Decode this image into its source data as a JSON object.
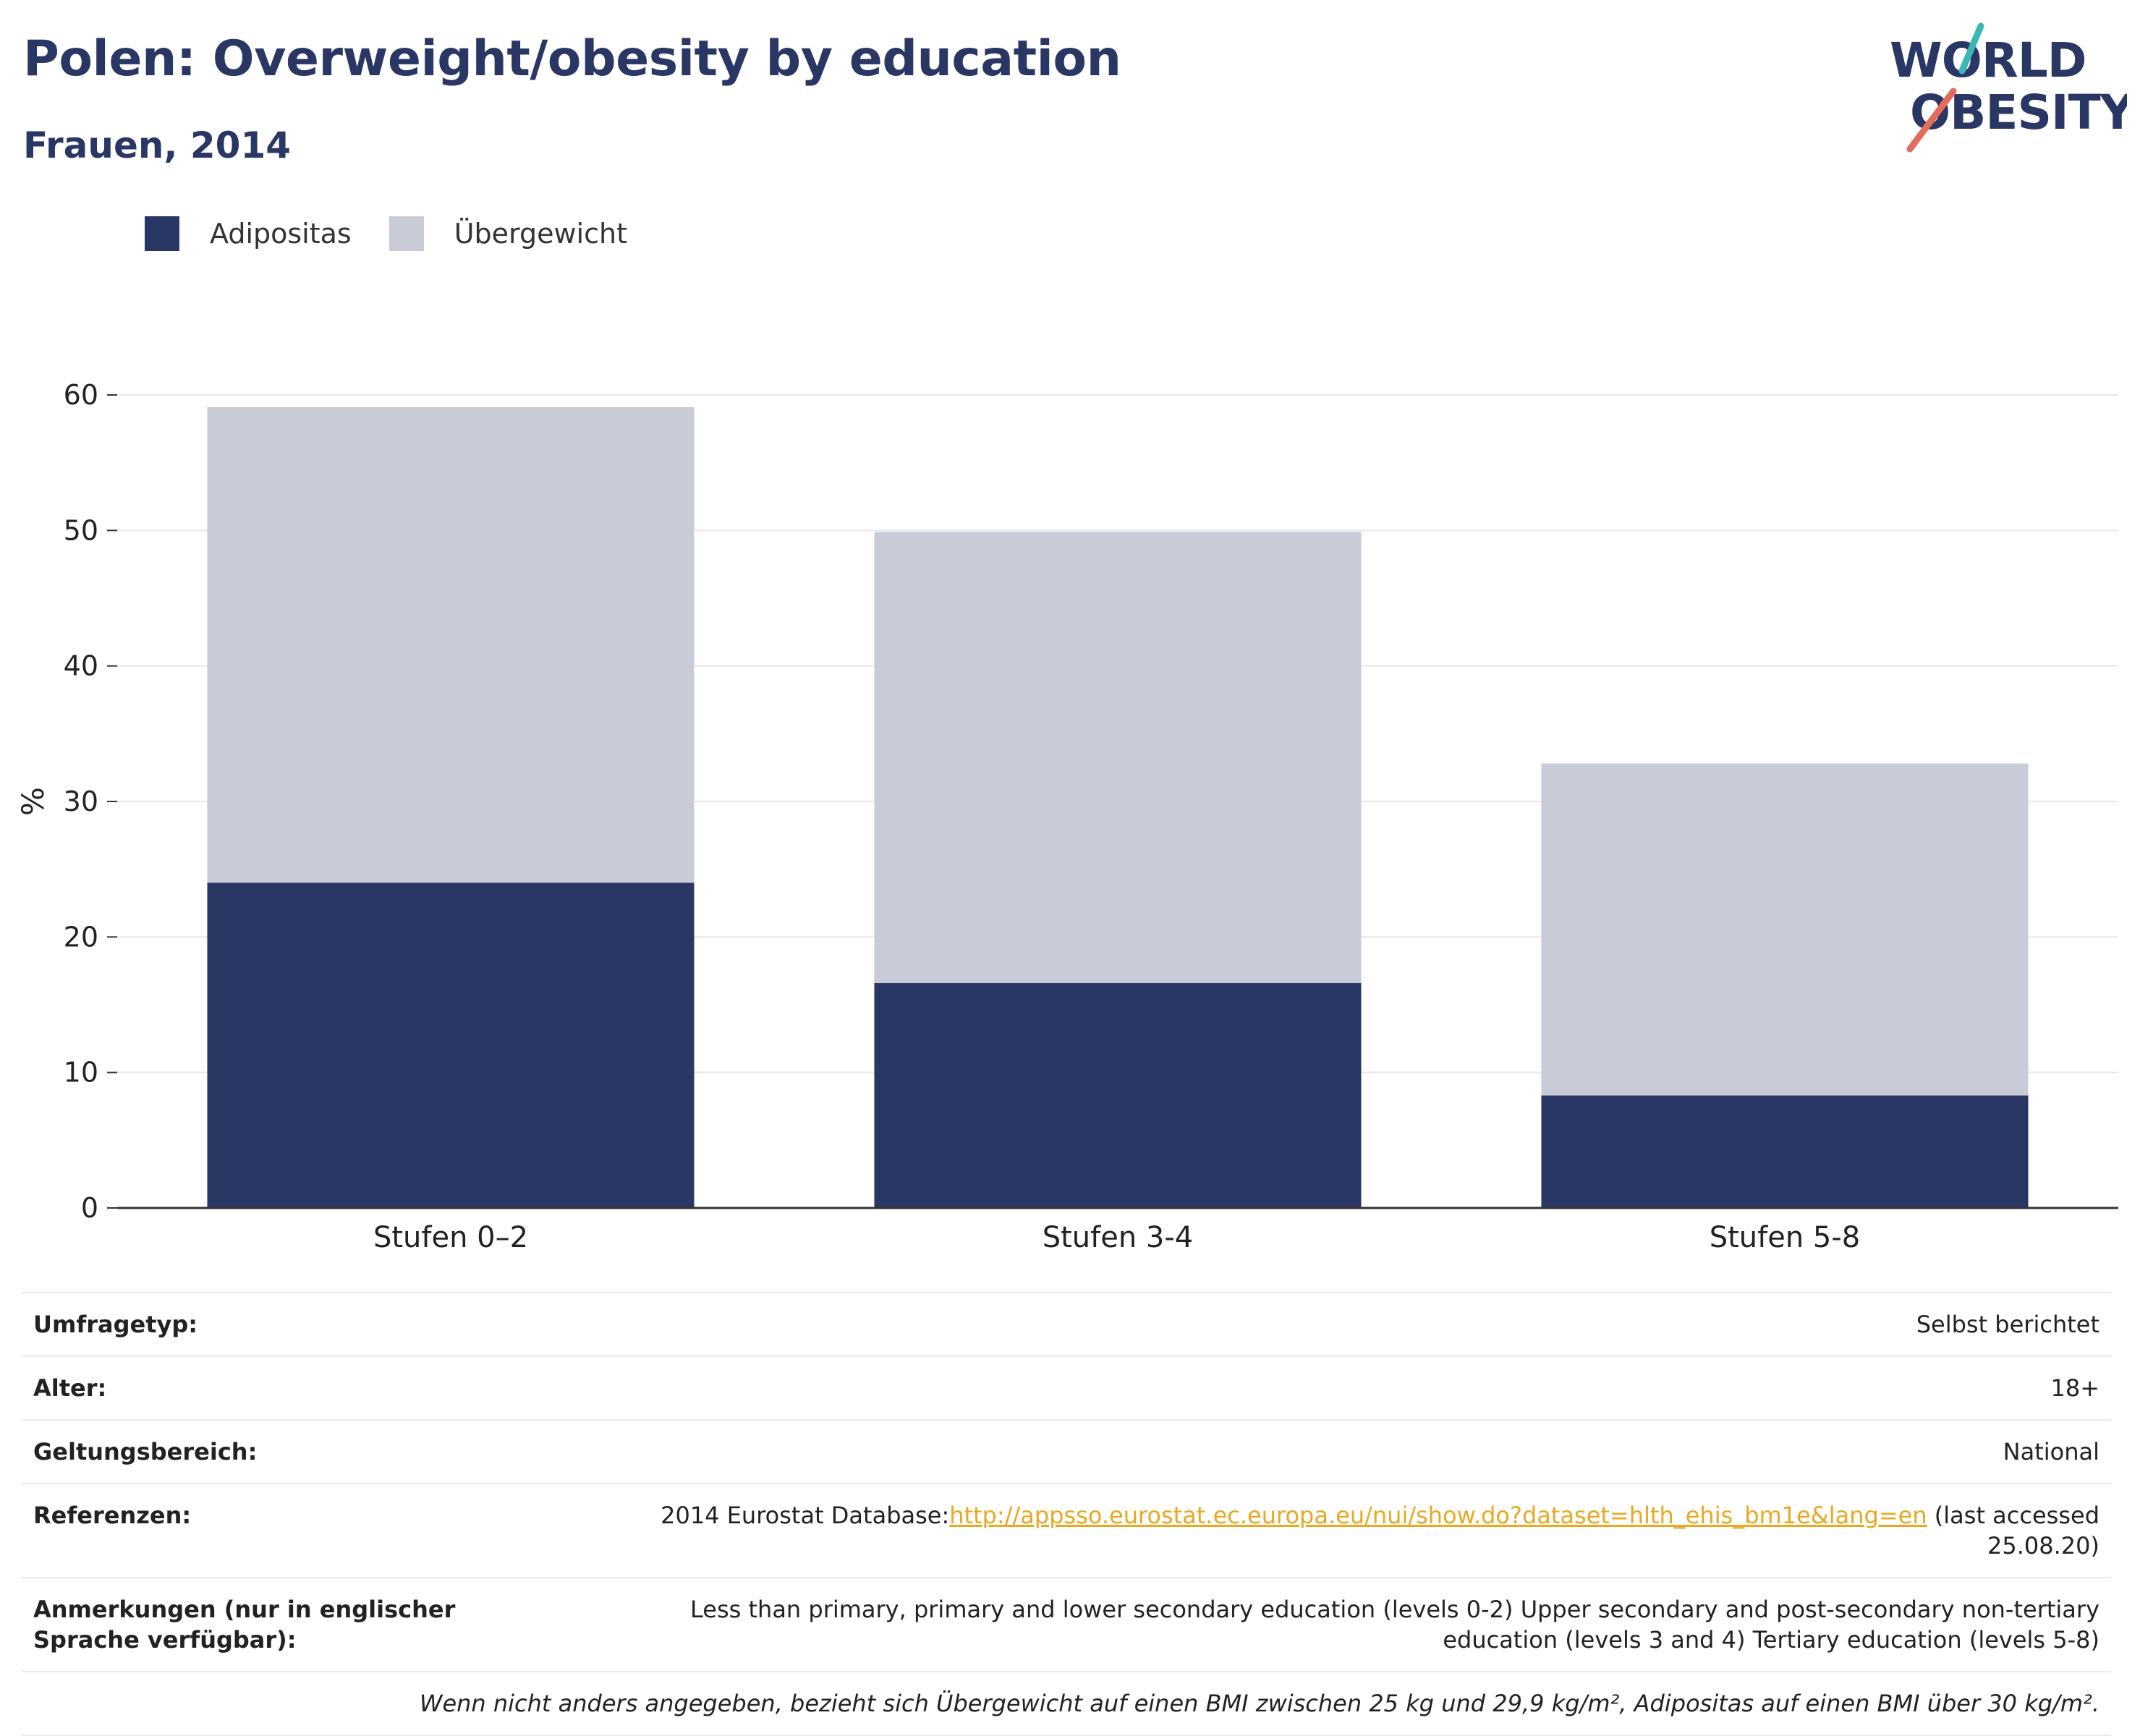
{
  "header": {
    "title": "Polen: Overweight/obesity by education",
    "subtitle": "Frauen, 2014"
  },
  "logo": {
    "line1": "WORLD",
    "line2": "OBESITY",
    "colors": {
      "text": "#2a3764",
      "slash_top": "#3bb8b4",
      "slash_bottom": "#e56c5c"
    }
  },
  "colors": {
    "obesity": "#2a3764",
    "overweight": "#c9ccd7",
    "grid": "#e6e7eb",
    "axis": "#333333",
    "link": "#e8a822"
  },
  "chart_data": {
    "type": "bar",
    "stacked": true,
    "categories": [
      "Stufen 0–2",
      "Stufen 3-4",
      "Stufen 5-8"
    ],
    "series": [
      {
        "name": "Adipositas",
        "values": [
          24.0,
          16.6,
          8.3
        ]
      },
      {
        "name": "Übergewicht",
        "values": [
          35.1,
          33.3,
          24.5
        ]
      }
    ],
    "ylabel": "%",
    "ylim": [
      0,
      60
    ],
    "yticks": [
      0,
      10,
      20,
      30,
      40,
      50,
      60
    ],
    "grid": true,
    "legend": "top-left"
  },
  "meta": {
    "survey_type": {
      "label": "Umfragetyp:",
      "value": "Selbst berichtet"
    },
    "age": {
      "label": "Alter:",
      "value": "18+"
    },
    "scope": {
      "label": "Geltungsbereich:",
      "value": "National"
    },
    "references": {
      "label": "Referenzen:",
      "prefix": "2014 Eurostat Database:",
      "link": "http://appsso.eurostat.ec.europa.eu/nui/show.do?dataset=hlth_ehis_bm1e&lang=en",
      "suffix": " (last accessed 25.08.20)"
    },
    "notes": {
      "label": "Anmerkungen (nur in englischer Sprache verfügbar):",
      "value": "Less than primary, primary and lower secondary education (levels 0-2) Upper secondary and post-secondary non-tertiary education (levels 3 and 4) Tertiary education (levels 5-8)"
    },
    "footnote": "Wenn nicht anders angegeben, bezieht sich Übergewicht auf einen BMI zwischen 25 kg und 29,9 kg/m², Adipositas auf einen BMI über 30 kg/m²."
  }
}
